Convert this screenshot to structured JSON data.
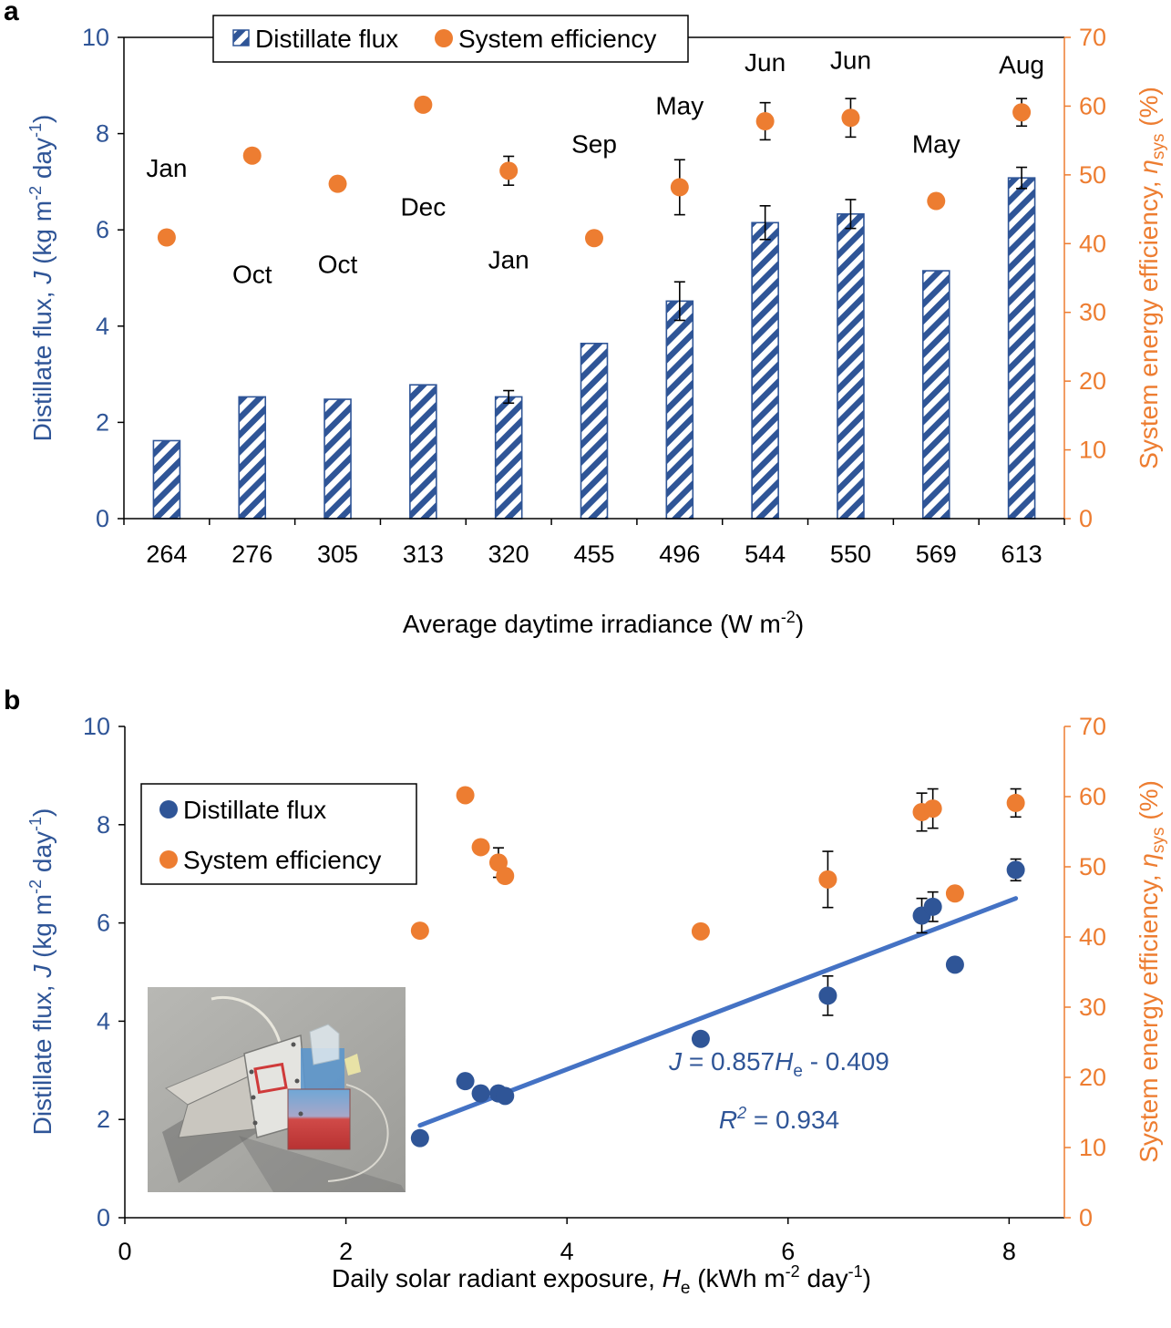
{
  "chart_data": [
    {
      "panel": "a",
      "type": "bar",
      "categories": [
        "264",
        "276",
        "305",
        "313",
        "320",
        "455",
        "496",
        "544",
        "550",
        "569",
        "613"
      ],
      "month_labels": [
        "Jan",
        "Oct",
        "Oct",
        "Dec",
        "Jan",
        "Sep",
        "May",
        "Jun",
        "Jun",
        "May",
        "Aug"
      ],
      "month_label_y": [
        7.1,
        4.9,
        5.1,
        6.3,
        5.2,
        7.6,
        8.4,
        9.3,
        9.35,
        7.6,
        9.25
      ],
      "series": [
        {
          "name": "Distillate flux",
          "axis": "left",
          "values": [
            1.62,
            2.53,
            2.48,
            2.78,
            2.53,
            3.64,
            4.52,
            6.15,
            6.33,
            5.15,
            7.08
          ],
          "err": [
            0,
            0,
            0,
            0,
            0.13,
            0,
            0.4,
            0.35,
            0.3,
            0,
            0.22
          ]
        },
        {
          "name": "System efficiency",
          "axis": "right",
          "values": [
            40.9,
            52.8,
            48.7,
            60.2,
            50.6,
            40.8,
            48.2,
            57.8,
            58.3,
            46.2,
            59.1
          ],
          "err": [
            0,
            0,
            0,
            0,
            2.1,
            0,
            4.0,
            2.7,
            2.8,
            0,
            2.0
          ]
        }
      ],
      "xlabel_parts": [
        "Average daytime irradiance (W m",
        "-2",
        ")"
      ],
      "ylabel_parts": [
        "Distillate flux, ",
        "J",
        " (kg m",
        "-2",
        " day",
        "-1",
        ")"
      ],
      "y2label_parts": [
        "System energy efficiency, ",
        "η",
        "sys",
        " (%)"
      ],
      "ylim": [
        0,
        10
      ],
      "y2lim": [
        0,
        70
      ],
      "yticks": [
        "0",
        "2",
        "4",
        "6",
        "8",
        "10"
      ],
      "y2ticks": [
        "0",
        "10",
        "20",
        "30",
        "40",
        "50",
        "60",
        "70"
      ],
      "legend_placement": "top-center",
      "grid": false
    },
    {
      "panel": "b",
      "type": "scatter",
      "series": [
        {
          "name": "Distillate flux",
          "axis": "left",
          "x": [
            2.67,
            3.08,
            3.22,
            3.38,
            3.44,
            5.21,
            6.36,
            7.21,
            7.31,
            7.51,
            8.06
          ],
          "y": [
            1.62,
            2.78,
            2.53,
            2.53,
            2.48,
            3.64,
            4.52,
            6.15,
            6.33,
            5.15,
            7.08
          ],
          "err": [
            0,
            0,
            0,
            0,
            0,
            0,
            0.4,
            0.35,
            0.3,
            0,
            0.22
          ]
        },
        {
          "name": "System efficiency",
          "axis": "right",
          "x": [
            2.67,
            3.08,
            3.22,
            3.38,
            3.44,
            5.21,
            6.36,
            7.21,
            7.31,
            7.51,
            8.06
          ],
          "y": [
            40.9,
            60.2,
            52.8,
            50.6,
            48.7,
            40.8,
            48.2,
            57.8,
            58.3,
            46.2,
            59.1
          ],
          "err": [
            0,
            0,
            0,
            2.1,
            0,
            0,
            4.0,
            2.7,
            2.8,
            0,
            2.0
          ]
        }
      ],
      "fit": {
        "x": [
          2.67,
          8.06
        ],
        "y": [
          1.88,
          6.5
        ]
      },
      "equation_parts": [
        "J",
        " = 0.857",
        "H",
        "e",
        " - 0.409"
      ],
      "r2_parts": [
        "R",
        "2",
        " = 0.934"
      ],
      "xlabel_parts": [
        "Daily solar radiant exposure, ",
        "H",
        "e",
        " (kWh m",
        "-2",
        " day",
        "-1",
        ")"
      ],
      "ylabel_parts": [
        "Distillate flux, ",
        "J",
        " (kg m",
        "-2",
        " day",
        "-1",
        ")"
      ],
      "y2label_parts": [
        "System energy efficiency, ",
        "η",
        "sys",
        " (%)"
      ],
      "xlim": [
        0,
        8.5
      ],
      "ylim": [
        0,
        10
      ],
      "y2lim": [
        0,
        70
      ],
      "xticks": [
        "0",
        "2",
        "4",
        "6",
        "8"
      ],
      "yticks": [
        "0",
        "2",
        "4",
        "6",
        "8",
        "10"
      ],
      "y2ticks": [
        "0",
        "10",
        "20",
        "30",
        "40",
        "50",
        "60",
        "70"
      ],
      "legend_placement": "upper-left",
      "grid": false
    }
  ],
  "panel_labels": [
    "a",
    "b"
  ],
  "inset_photo": "photo-of-solar-distillation-device",
  "colors": {
    "flux": "#2f5597",
    "efficiency": "#ed7d31",
    "fit": "#4472c4",
    "axis_right": "#ed7d31",
    "axis_left": "#2f5597"
  }
}
